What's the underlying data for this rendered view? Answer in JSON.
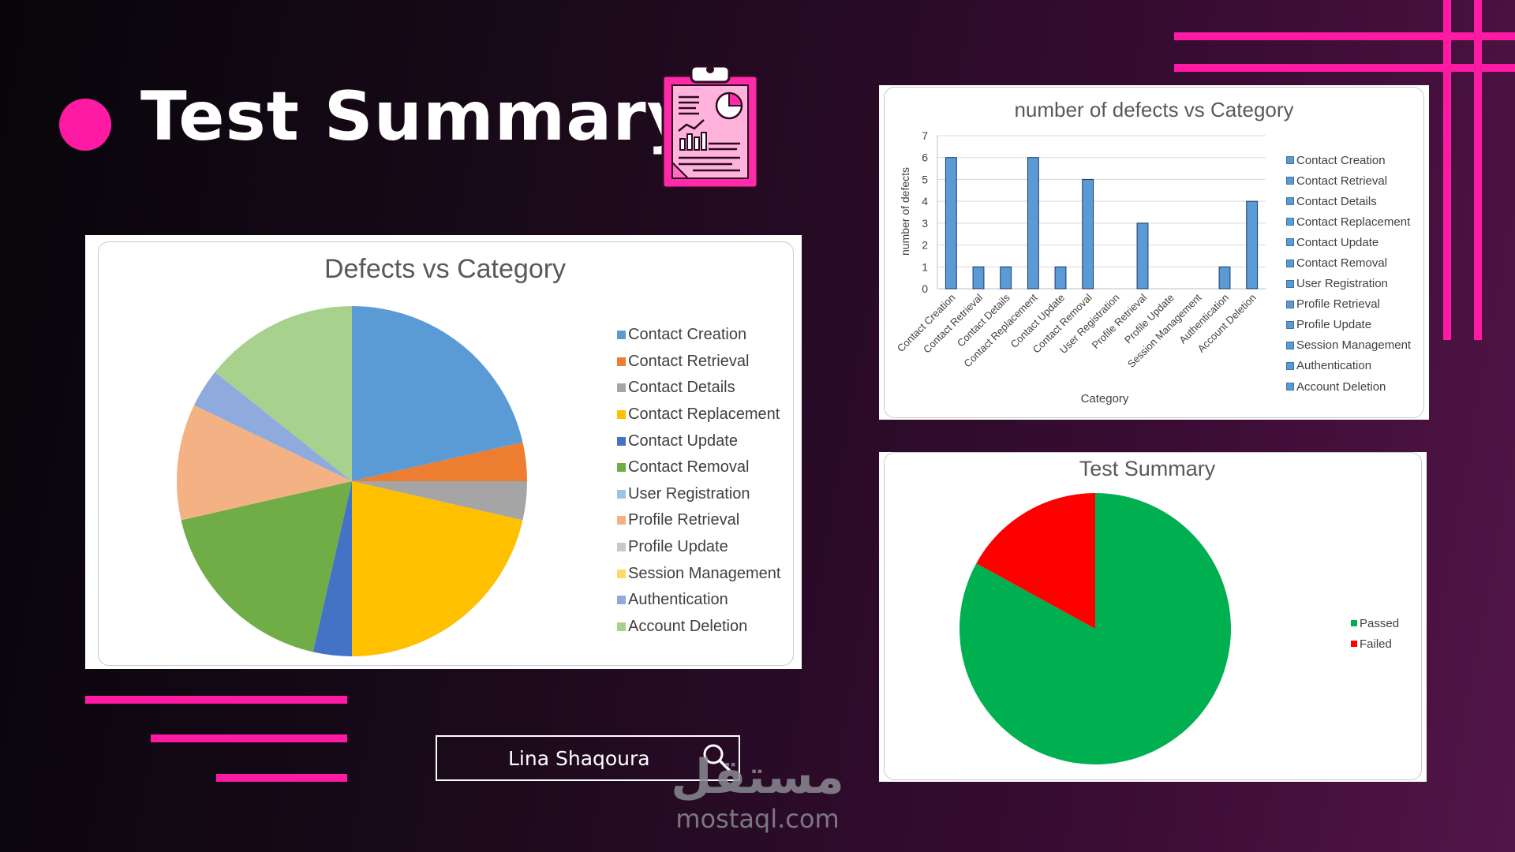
{
  "slide": {
    "title": "Test Summary",
    "author": "Lina Shaqoura",
    "watermark_arabic": "مستقل",
    "watermark_latin": "mostaql.com",
    "accent_color": "#ff1aa3",
    "icons": [
      "clipboard-report-icon",
      "search-icon"
    ]
  },
  "chart_data": [
    {
      "type": "pie",
      "title": "Defects vs Category",
      "categories": [
        "Contact Creation",
        "Contact Retrieval",
        "Contact Details",
        "Contact Replacement",
        "Contact Update",
        "Contact Removal",
        "User Registration",
        "Profile Retrieval",
        "Profile Update",
        "Session Management",
        "Authentication",
        "Account Deletion"
      ],
      "values": [
        6,
        1,
        1,
        6,
        1,
        5,
        0,
        3,
        0,
        0,
        1,
        4
      ],
      "colors": [
        "#5b9bd5",
        "#ed7d31",
        "#a5a5a5",
        "#ffc000",
        "#4472c4",
        "#70ad47",
        "#9dc3e6",
        "#f4b183",
        "#c9c9c9",
        "#ffd966",
        "#8faadc",
        "#a9d18e"
      ],
      "legend": "right"
    },
    {
      "type": "bar",
      "title": "number of defects vs Category",
      "categories": [
        "Contact Creation",
        "Contact Retrieval",
        "Contact Details",
        "Contact Replacement",
        "Contact Update",
        "Contact Removal",
        "User Registration",
        "Profile Retrieval",
        "Profile Update",
        "Session Management",
        "Authentication",
        "Account Deletion"
      ],
      "values": [
        6,
        1,
        1,
        6,
        1,
        5,
        0,
        3,
        0,
        0,
        1,
        4
      ],
      "xlabel": "Category",
      "ylabel": "number of defects",
      "ylim": [
        0,
        7
      ],
      "yticks": [
        "0",
        "1",
        "2",
        "3",
        "4",
        "5",
        "6",
        "7"
      ],
      "grid": true,
      "bar_color": "#5b9bd5",
      "legend": "right"
    },
    {
      "type": "pie",
      "title": "Test Summary",
      "categories": [
        "Passed",
        "Failed"
      ],
      "values": [
        83,
        17
      ],
      "colors": [
        "#00b050",
        "#ff0000"
      ],
      "legend": "right"
    }
  ]
}
